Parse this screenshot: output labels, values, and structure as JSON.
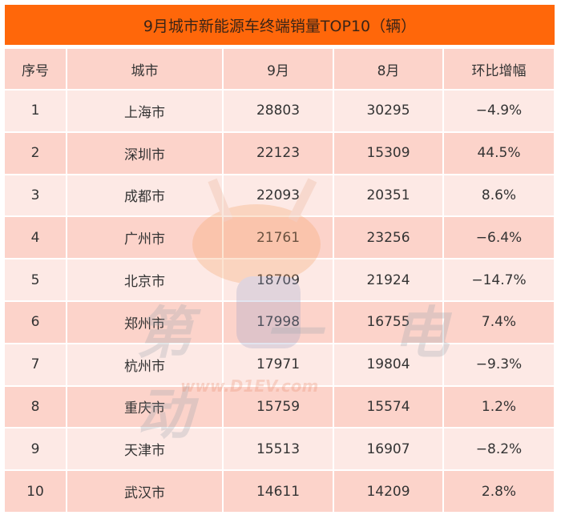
{
  "title": "9月城市新能源车终端销量TOP10（辆）",
  "headers": [
    "序号",
    "城市",
    "9月",
    "8月",
    "环比增幅"
  ],
  "rows": [
    [
      "1",
      "上海市",
      "28803",
      "30295",
      "−4.9%"
    ],
    [
      "2",
      "深圳市",
      "22123",
      "15309",
      "44.5%"
    ],
    [
      "3",
      "成都市",
      "22093",
      "20351",
      "8.6%"
    ],
    [
      "4",
      "广州市",
      "21761",
      "23256",
      "−6.4%"
    ],
    [
      "5",
      "北京市",
      "18709",
      "21924",
      "−14.7%"
    ],
    [
      "6",
      "郑州市",
      "17998",
      "16755",
      "7.4%"
    ],
    [
      "7",
      "杭州市",
      "17971",
      "19804",
      "−9.3%"
    ],
    [
      "8",
      "重庆市",
      "15759",
      "15574",
      "1.2%"
    ],
    [
      "9",
      "天津市",
      "15513",
      "16907",
      "−8.2%"
    ],
    [
      "10",
      "武汉市",
      "14611",
      "14209",
      "2.8%"
    ]
  ],
  "watermark": {
    "logo": "第一电动",
    "url": "www.D1EV.com"
  },
  "colors": {
    "title_bg": "#ff670a",
    "header_bg": "#fcd3ca",
    "row_light": "#fde9e5",
    "row_dark": "#fcd3ca"
  }
}
